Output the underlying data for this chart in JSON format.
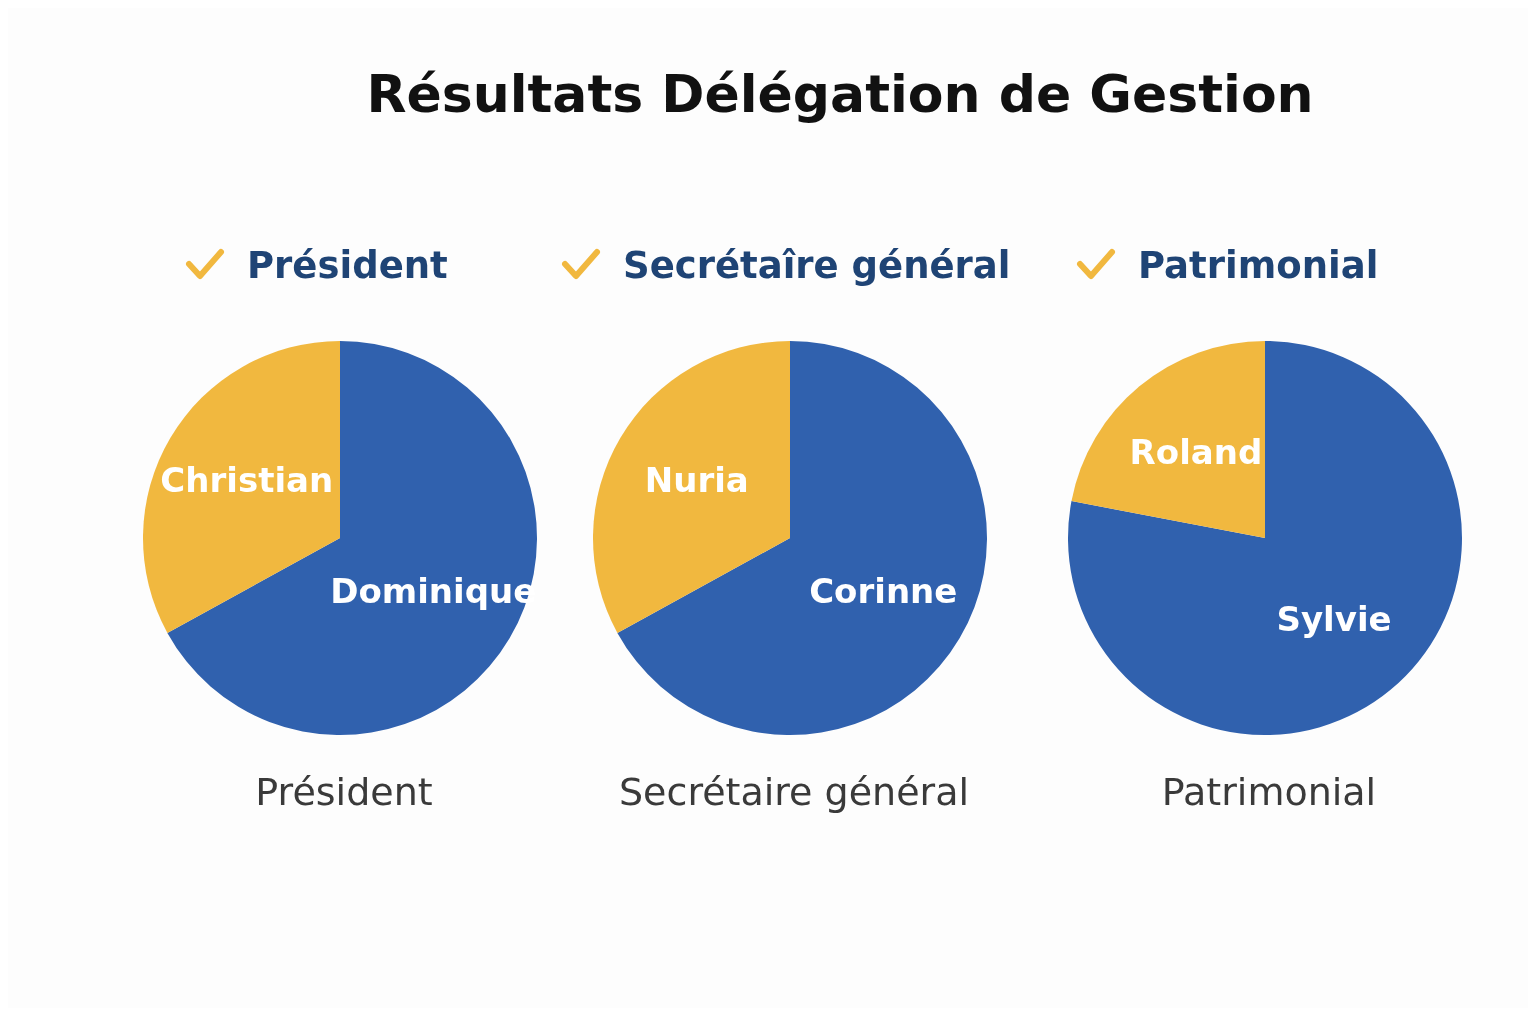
{
  "chart_data": [
    {
      "type": "pie",
      "title": "Résultats Délégation de Gestion",
      "subtitle": "Président",
      "xlabel": "Président",
      "categories": [
        "Dominique",
        "Christian"
      ],
      "values": [
        67,
        33
      ],
      "colors": [
        "#3061ae",
        "#f1b83f"
      ]
    },
    {
      "type": "pie",
      "subtitle": "Secrétaîre général",
      "xlabel": "Secrétaire général",
      "categories": [
        "Corinne",
        "Nuria"
      ],
      "values": [
        67,
        33
      ],
      "colors": [
        "#3061ae",
        "#f1b83f"
      ]
    },
    {
      "type": "pie",
      "subtitle": "Patrimonial",
      "xlabel": "Patrimonial",
      "categories": [
        "Sylvie",
        "Roland"
      ],
      "values": [
        78,
        22
      ],
      "colors": [
        "#3061ae",
        "#f1b83f"
      ]
    }
  ]
}
